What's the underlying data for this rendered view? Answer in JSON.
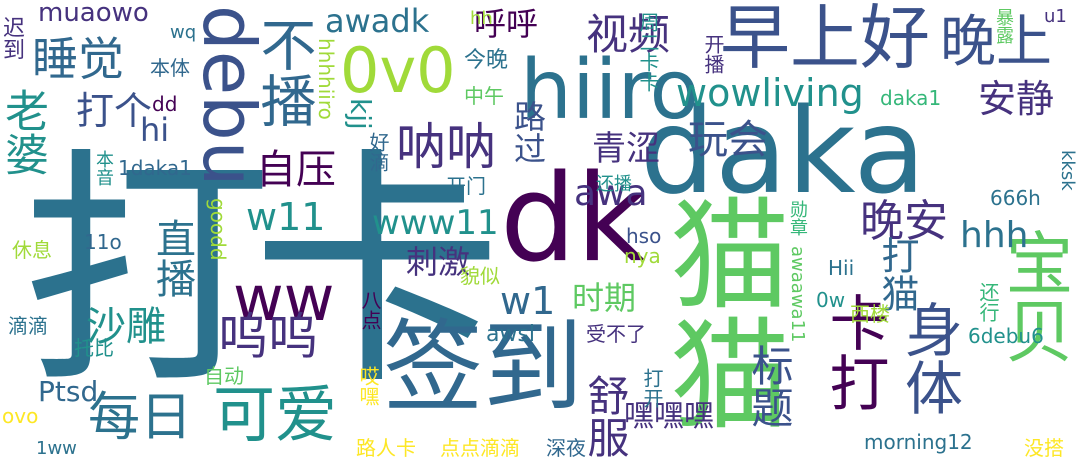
{
  "word_cloud": {
    "words": [
      "打卡",
      "daka",
      "dk",
      "猫猫",
      "签到",
      "hiiro",
      "debu",
      "早上好",
      "晚上",
      "0v0",
      "宝贝",
      "不播",
      "ww",
      "可爱",
      "每日",
      "卡打",
      "呜呜",
      "身体",
      "呐呐",
      "标题",
      "睡觉",
      "老婆",
      "视频",
      "wowliving",
      "玩会",
      "晚安",
      "安静",
      "呼呼",
      "自压",
      "awadk",
      "muaowo",
      "打个",
      "hi",
      "kjj",
      "路过",
      "青涩",
      "w11",
      "www11",
      "hhh",
      "awa",
      "直播",
      "刺激",
      "打猫",
      "w1",
      "时期",
      "沙雕",
      "舒服",
      "嘿嘿嘿",
      "Ptsd",
      "awsl",
      "迟到",
      "本体",
      "wq",
      "今晚",
      "hh",
      "hhhhiiro",
      "周二卡卡",
      "开播",
      "暴露",
      "u1",
      "dd",
      "中午",
      "daka1",
      "1daka1",
      "本音",
      "好滴",
      "开门",
      "还播",
      "kksk",
      "666h",
      "goodd",
      "11o",
      "休息",
      "hso",
      "nya",
      "勋章",
      "Hii",
      "貌似",
      "八点",
      "0w",
      "还行",
      "西楼",
      "awaawa11",
      "受不了",
      "6debu6",
      "滴滴",
      "托比",
      "自动",
      "ovo",
      "哎嘿",
      "打开",
      "morning12",
      "没搭",
      "1ww",
      "路人卡",
      "点点滴滴",
      "深夜"
    ]
  }
}
